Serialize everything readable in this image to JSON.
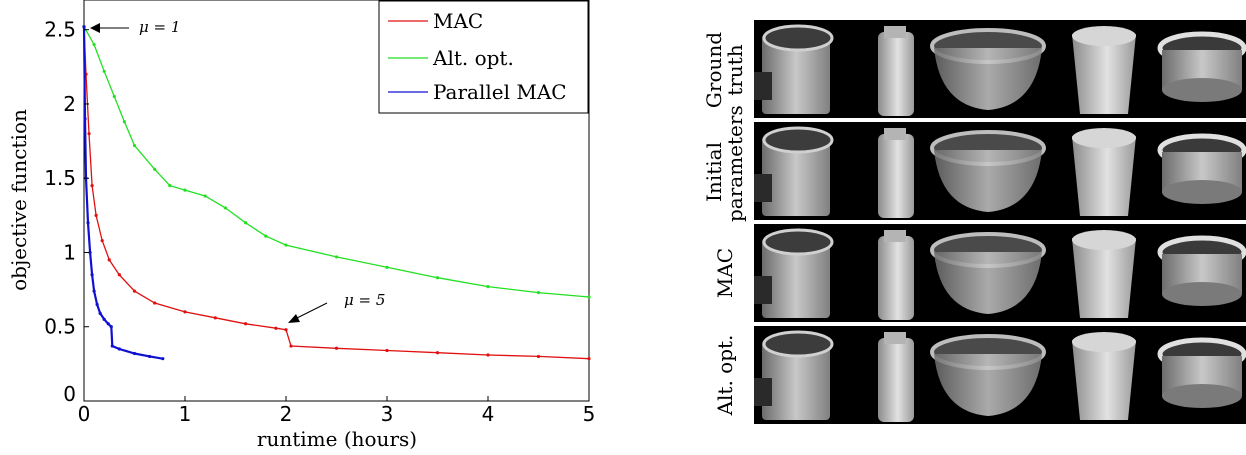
{
  "chart_data": {
    "type": "line",
    "xlabel": "runtime (hours)",
    "ylabel": "objective function",
    "xlim": [
      0,
      5
    ],
    "ylim": [
      0,
      2.7
    ],
    "xticks": [
      "0",
      "1",
      "2",
      "3",
      "4",
      "5"
    ],
    "yticks": [
      "0",
      "0.5",
      "1",
      "1.5",
      "2",
      "2.5"
    ],
    "grid": false,
    "legend_position": "top-right",
    "series": [
      {
        "name": "MAC",
        "color": "#e01010",
        "x": [
          0,
          0.02,
          0.05,
          0.08,
          0.12,
          0.18,
          0.25,
          0.35,
          0.5,
          0.7,
          1.0,
          1.3,
          1.6,
          1.9,
          2.0,
          2.05,
          2.5,
          3.0,
          3.5,
          4.0,
          4.5,
          5.0
        ],
        "values": [
          2.52,
          2.2,
          1.8,
          1.45,
          1.25,
          1.08,
          0.95,
          0.85,
          0.74,
          0.66,
          0.6,
          0.56,
          0.52,
          0.49,
          0.48,
          0.37,
          0.355,
          0.34,
          0.325,
          0.31,
          0.3,
          0.285
        ]
      },
      {
        "name": "Alt. opt.",
        "color": "#22e022",
        "x": [
          0,
          0.1,
          0.2,
          0.3,
          0.4,
          0.5,
          0.7,
          0.85,
          1.0,
          1.2,
          1.4,
          1.6,
          1.8,
          2.0,
          2.5,
          3.0,
          3.5,
          4.0,
          4.5,
          5.0
        ],
        "values": [
          2.52,
          2.4,
          2.22,
          2.05,
          1.88,
          1.72,
          1.56,
          1.45,
          1.42,
          1.38,
          1.3,
          1.2,
          1.11,
          1.05,
          0.97,
          0.9,
          0.83,
          0.77,
          0.73,
          0.7
        ]
      },
      {
        "name": "Parallel MAC",
        "color": "#1010d0",
        "x": [
          0,
          0.01,
          0.02,
          0.04,
          0.06,
          0.08,
          0.1,
          0.13,
          0.16,
          0.2,
          0.24,
          0.27,
          0.28,
          0.35,
          0.5,
          0.65,
          0.78
        ],
        "values": [
          2.52,
          1.9,
          1.5,
          1.2,
          1.0,
          0.85,
          0.74,
          0.65,
          0.59,
          0.55,
          0.52,
          0.5,
          0.37,
          0.35,
          0.32,
          0.3,
          0.285
        ]
      }
    ],
    "annotations": [
      {
        "text": "μ = 1",
        "x": 0,
        "y": 2.52
      },
      {
        "text": "μ = 5",
        "x": 2.0,
        "y": 0.48
      }
    ]
  },
  "figure": {
    "row_labels": [
      [
        "Ground",
        "truth"
      ],
      [
        "Initial",
        "parameters"
      ],
      [
        "MAC"
      ],
      [
        "Alt. opt."
      ]
    ]
  }
}
